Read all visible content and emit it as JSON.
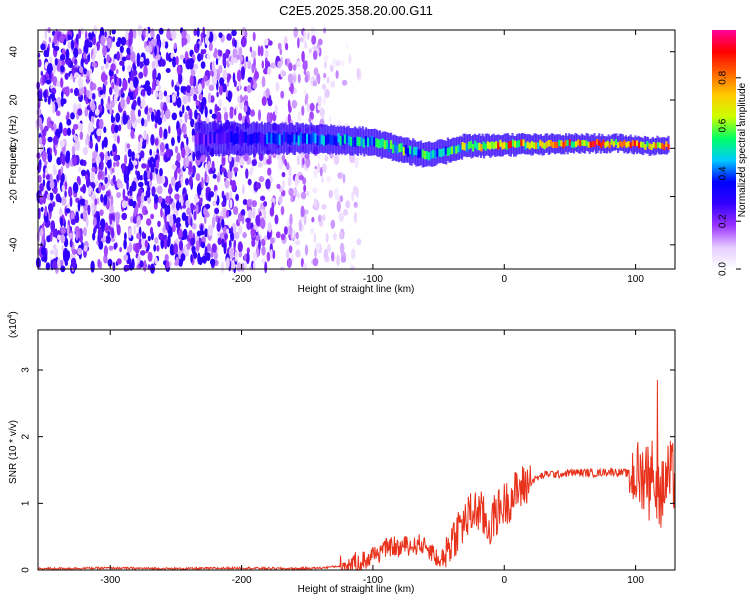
{
  "figure_title": "C2E5.2025.358.20.00.G11",
  "chart_data": [
    {
      "type": "heatmap",
      "xlabel": "Height of straight line (km)",
      "ylabel": "Frequency (Hz)",
      "xlim": [
        -355,
        130
      ],
      "ylim": [
        -50,
        49
      ],
      "x_ticks": [
        -300,
        -200,
        -100,
        0,
        100
      ],
      "x_tick_labels": [
        "-300",
        "-200",
        "-100",
        "0",
        "100"
      ],
      "y_ticks": [
        -40,
        -20,
        0,
        20,
        40
      ],
      "y_tick_labels": [
        "-40",
        "-20",
        "0",
        "20",
        "40"
      ],
      "colorbar": {
        "label": "Normalized spectral amplitude",
        "range": [
          0,
          1
        ],
        "ticks": [
          0.0,
          0.2,
          0.4,
          0.6,
          0.8
        ],
        "tick_labels": [
          "0.0",
          "0.2",
          "0.4",
          "0.6",
          "0.8"
        ],
        "colormap": [
          "#ffffff",
          "#e6ccff",
          "#9933ff",
          "#3300ff",
          "#0000ff",
          "#00ccff",
          "#00ff66",
          "#ccff00",
          "#ffcc00",
          "#ff6600",
          "#ff0000",
          "#ff0099"
        ]
      },
      "ridge_center_frequency": [
        [
          -235,
          4
        ],
        [
          -200,
          4
        ],
        [
          -150,
          4
        ],
        [
          -120,
          3.5
        ],
        [
          -100,
          2.5
        ],
        [
          -80,
          0
        ],
        [
          -60,
          -3
        ],
        [
          -50,
          -2
        ],
        [
          -30,
          1
        ],
        [
          -10,
          1
        ],
        [
          0,
          1.5
        ],
        [
          30,
          1.5
        ],
        [
          60,
          2
        ],
        [
          90,
          2
        ],
        [
          110,
          1
        ],
        [
          125,
          1
        ]
      ],
      "ridge_amplitude": [
        [
          -235,
          0.3
        ],
        [
          -200,
          0.35
        ],
        [
          -150,
          0.45
        ],
        [
          -120,
          0.5
        ],
        [
          -100,
          0.55
        ],
        [
          -80,
          0.6
        ],
        [
          -60,
          0.55
        ],
        [
          -50,
          0.5
        ],
        [
          -30,
          0.7
        ],
        [
          -10,
          0.8
        ],
        [
          0,
          0.85
        ],
        [
          30,
          0.75
        ],
        [
          60,
          0.9
        ],
        [
          90,
          0.9
        ],
        [
          110,
          0.8
        ],
        [
          125,
          0.9
        ]
      ],
      "noise_region": {
        "x_range": [
          -355,
          -140
        ],
        "frequency_range": [
          -50,
          49
        ],
        "typical_amplitude": 0.25
      }
    },
    {
      "type": "line",
      "xlabel": "Height of straight line (km)",
      "ylabel": "SNR (10 * v/v)",
      "y_scale_label_prefix": "(x10",
      "y_scale_label_exp": "4",
      "y_scale_label_suffix": ")",
      "xlim": [
        -355,
        130
      ],
      "ylim": [
        0,
        3.6
      ],
      "x_ticks": [
        -300,
        -200,
        -100,
        0,
        100
      ],
      "x_tick_labels": [
        "-300",
        "-200",
        "-100",
        "0",
        "100"
      ],
      "y_ticks": [
        0,
        1,
        2,
        3
      ],
      "y_tick_labels": [
        "0",
        "1",
        "2",
        "3"
      ],
      "line_color": "#e8311a",
      "series": [
        {
          "x": [
            -355,
            -300,
            -250,
            -200,
            -160,
            -140,
            -125,
            -115,
            -105,
            -100,
            -95,
            -90,
            -85,
            -80,
            -75,
            -70,
            -65,
            -60,
            -55,
            -50,
            -45,
            -40,
            -35,
            -30,
            -25,
            -22,
            -20,
            -17,
            -15,
            -12,
            -10,
            -5,
            0,
            5,
            10,
            15,
            20,
            25,
            30,
            35,
            40,
            50,
            60,
            70,
            80,
            90,
            100,
            105,
            108,
            110,
            112,
            114,
            116,
            118,
            119,
            121,
            123,
            125,
            130
          ],
          "y": [
            0.02,
            0.03,
            0.02,
            0.03,
            0.02,
            0.03,
            0.06,
            0.1,
            0.15,
            0.22,
            0.28,
            0.32,
            0.35,
            0.32,
            0.38,
            0.35,
            0.4,
            0.35,
            0.3,
            0.1,
            0.25,
            0.45,
            0.62,
            0.72,
            0.85,
            0.88,
            0.9,
            0.83,
            0.75,
            0.65,
            0.7,
            0.88,
            0.98,
            1.08,
            1.18,
            1.26,
            1.32,
            1.38,
            1.42,
            1.45,
            1.43,
            1.46,
            1.46,
            1.45,
            1.48,
            1.46,
            1.43,
            1.38,
            1.55,
            1.25,
            1.45,
            1.5,
            1.2,
            1.1,
            1.0,
            1.2,
            1.35,
            1.4,
            1.4
          ]
        }
      ]
    }
  ]
}
